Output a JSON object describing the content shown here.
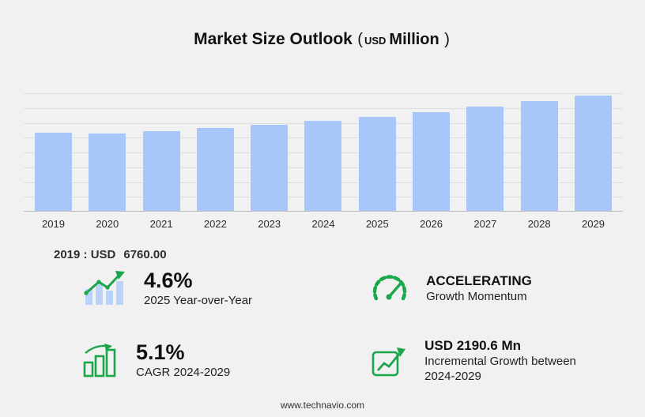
{
  "title": {
    "main": "Market Size Outlook",
    "paren_open": "(",
    "currency": "USD",
    "unit": "Million",
    "paren_close": ")"
  },
  "chart_data": {
    "type": "bar",
    "title": "Market Size Outlook (USD Million)",
    "categories": [
      "2019",
      "2020",
      "2021",
      "2022",
      "2023",
      "2024",
      "2025",
      "2026",
      "2027",
      "2028",
      "2029"
    ],
    "values": [
      6760,
      6650,
      6900,
      7120,
      7420,
      7760,
      8117,
      8520,
      8960,
      9440,
      9950.6
    ],
    "xlabel": "",
    "ylabel": "USD Million",
    "ylim": [
      0,
      10200
    ],
    "grid": true,
    "legend": "none",
    "bar_color": "#a7c6f9"
  },
  "annotation": {
    "prefix": "2019 : USD",
    "value": "6760.00"
  },
  "stats": {
    "yoy": {
      "value": "4.6%",
      "label": "2025 Year-over-Year",
      "icon": "bar-chart-trend-icon"
    },
    "momentum": {
      "value": "ACCELERATING",
      "label": "Growth Momentum",
      "icon": "speedometer-icon"
    },
    "cagr": {
      "value": "5.1%",
      "label": "CAGR 2024-2029",
      "icon": "growth-bars-icon"
    },
    "incremental": {
      "value": "USD 2190.6 Mn",
      "label": "Incremental Growth between 2024-2029",
      "icon": "line-growth-icon"
    }
  },
  "footer": {
    "url": "www.technavio.com"
  },
  "colors": {
    "background": "#f1f1f1",
    "bar": "#a7c6f9",
    "accent_green": "#1aa64a",
    "gridline": "#dedede"
  }
}
